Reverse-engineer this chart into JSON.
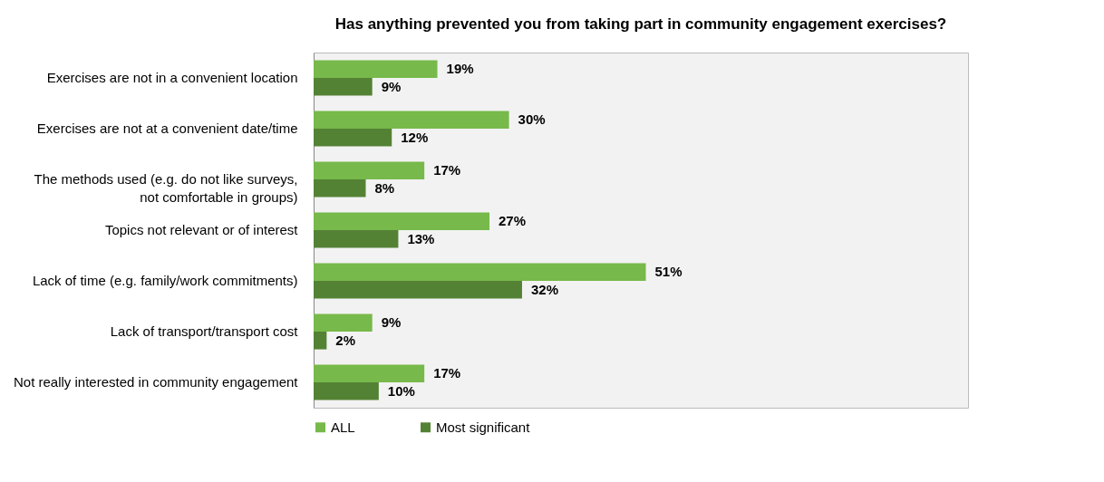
{
  "chart_data": {
    "type": "bar",
    "orientation": "horizontal",
    "title": "Has anything prevented you from taking part in community engagement exercises?",
    "categories": [
      "Exercises are not in a convenient location",
      "Exercises are not at a convenient date/time",
      "The methods used (e.g. do not like surveys, not comfortable in groups)",
      "Topics not relevant or of interest",
      "Lack of time (e.g. family/work commitments)",
      "Lack of transport/transport cost",
      "Not really interested in community engagement"
    ],
    "series": [
      {
        "name": "ALL",
        "color": "#77b94a",
        "values": [
          19,
          30,
          17,
          27,
          51,
          9,
          17
        ],
        "value_labels": [
          "19%",
          "30%",
          "17%",
          "27%",
          "51%",
          "9%",
          "17%"
        ]
      },
      {
        "name": "Most significant",
        "color": "#548235",
        "values": [
          9,
          12,
          8,
          13,
          32,
          2,
          10
        ],
        "value_labels": [
          "9%",
          "12%",
          "8%",
          "13%",
          "32%",
          "2%",
          "10%"
        ]
      }
    ],
    "legend": "bottom",
    "grid": false
  }
}
